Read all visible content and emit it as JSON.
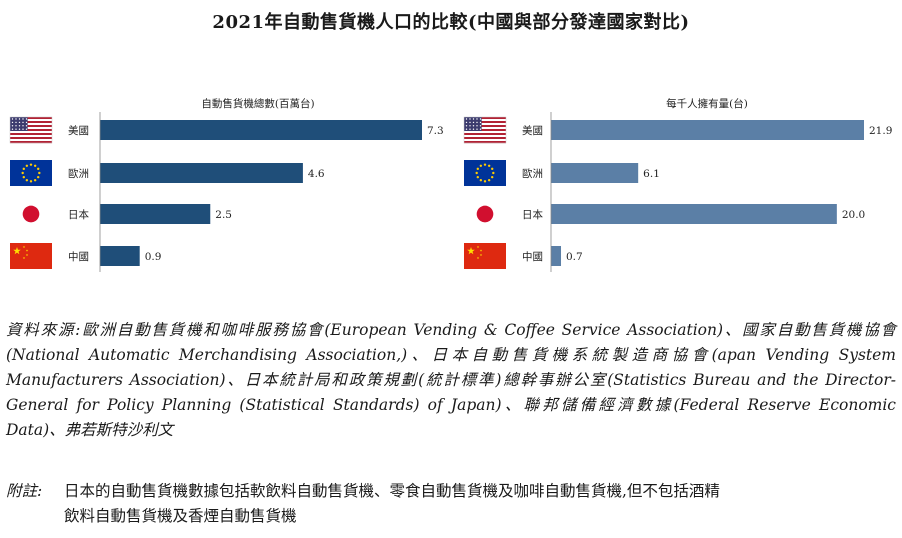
{
  "title": "2021年自動售貨機人口的比較(中國與部分發達國家對比)",
  "chart_data": [
    {
      "type": "bar",
      "orientation": "horizontal",
      "subtitle": "自動售貨機總數(百萬台)",
      "categories": [
        "美國",
        "歐洲",
        "日本",
        "中國"
      ],
      "values": [
        7.3,
        4.6,
        2.5,
        0.9
      ],
      "value_labels": [
        "7.3",
        "4.6",
        "2.5",
        "0.9"
      ],
      "color": "#1f4e79",
      "xlim": [
        0,
        7.3
      ]
    },
    {
      "type": "bar",
      "orientation": "horizontal",
      "subtitle": "每千人擁有量(台)",
      "categories": [
        "美國",
        "歐洲",
        "日本",
        "中國"
      ],
      "values": [
        21.9,
        6.1,
        20.0,
        0.7
      ],
      "value_labels": [
        "21.9",
        "6.1",
        "20.0",
        "0.7"
      ],
      "color": "#5b7fa6",
      "xlim": [
        0,
        21.9
      ]
    }
  ],
  "flags": [
    "us-flag-icon",
    "eu-flag-icon",
    "japan-flag-icon",
    "china-flag-icon"
  ],
  "source_text": "資料來源:歐洲自動售貨機和咖啡服務協會(European Vending & Coffee Service Association)、國家自動售貨機協會(National Automatic Merchandising Association,)、日本自動售貨機系統製造商協會(apan Vending System Manufacturers Association)、日本統計局和政策規劃(統計標準)總幹事辦公室(Statistics Bureau and the Director-General for Policy Planning (Statistical Standards) of Japan)、聯邦儲備經濟數據(Federal Reserve Economic Data)、弗若斯特沙利文",
  "note": {
    "label": "附註:",
    "line1": "日本的自動售貨機數據包括軟飲料自動售貨機、零食自動售貨機及咖啡自動售貨機,但不包括酒精",
    "line2": "飲料自動售貨機及香煙自動售貨機"
  }
}
